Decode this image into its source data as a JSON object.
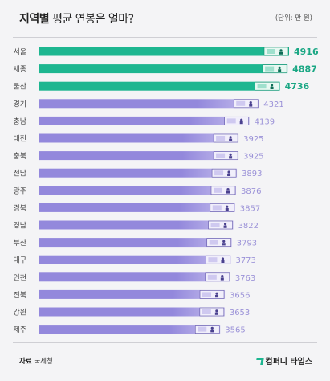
{
  "header": {
    "title_bold": "지역별",
    "title_rest": "평균 연봉은 얼마?",
    "unit": "(단위: 만 원)"
  },
  "footer": {
    "source_label": "자료",
    "source_value": "국세청",
    "brand": "컴퍼니 타임스"
  },
  "colors": {
    "highlight": "#1db690",
    "highlight_light": "#cdeee4",
    "regular": "#9388dc",
    "regular_light": "#e4e1f6",
    "label_text": "#444444",
    "value_highlight": "#1aa784",
    "value_regular": "#9b92d8"
  },
  "chart_data": {
    "type": "bar",
    "orientation": "horizontal",
    "categories": [
      "서울",
      "세종",
      "울산",
      "경기",
      "충남",
      "대전",
      "충북",
      "전남",
      "광주",
      "경북",
      "경남",
      "부산",
      "대구",
      "인천",
      "전북",
      "강원",
      "제주"
    ],
    "values": [
      4916,
      4887,
      4736,
      4321,
      4139,
      3925,
      3925,
      3893,
      3876,
      3857,
      3822,
      3793,
      3773,
      3763,
      3656,
      3653,
      3565
    ],
    "highlighted": [
      true,
      true,
      true,
      false,
      false,
      false,
      false,
      false,
      false,
      false,
      false,
      false,
      false,
      false,
      false,
      false,
      false
    ],
    "value_labels": [
      "4916",
      "4887",
      "4736",
      "4321",
      "4139",
      "3925",
      "3925",
      "3893",
      "3876",
      "3857",
      "3822",
      "3793",
      "3773",
      "3763",
      "3656",
      "3653",
      "3565"
    ],
    "xlim": [
      0,
      4916
    ],
    "grid": false,
    "legend": "none"
  }
}
